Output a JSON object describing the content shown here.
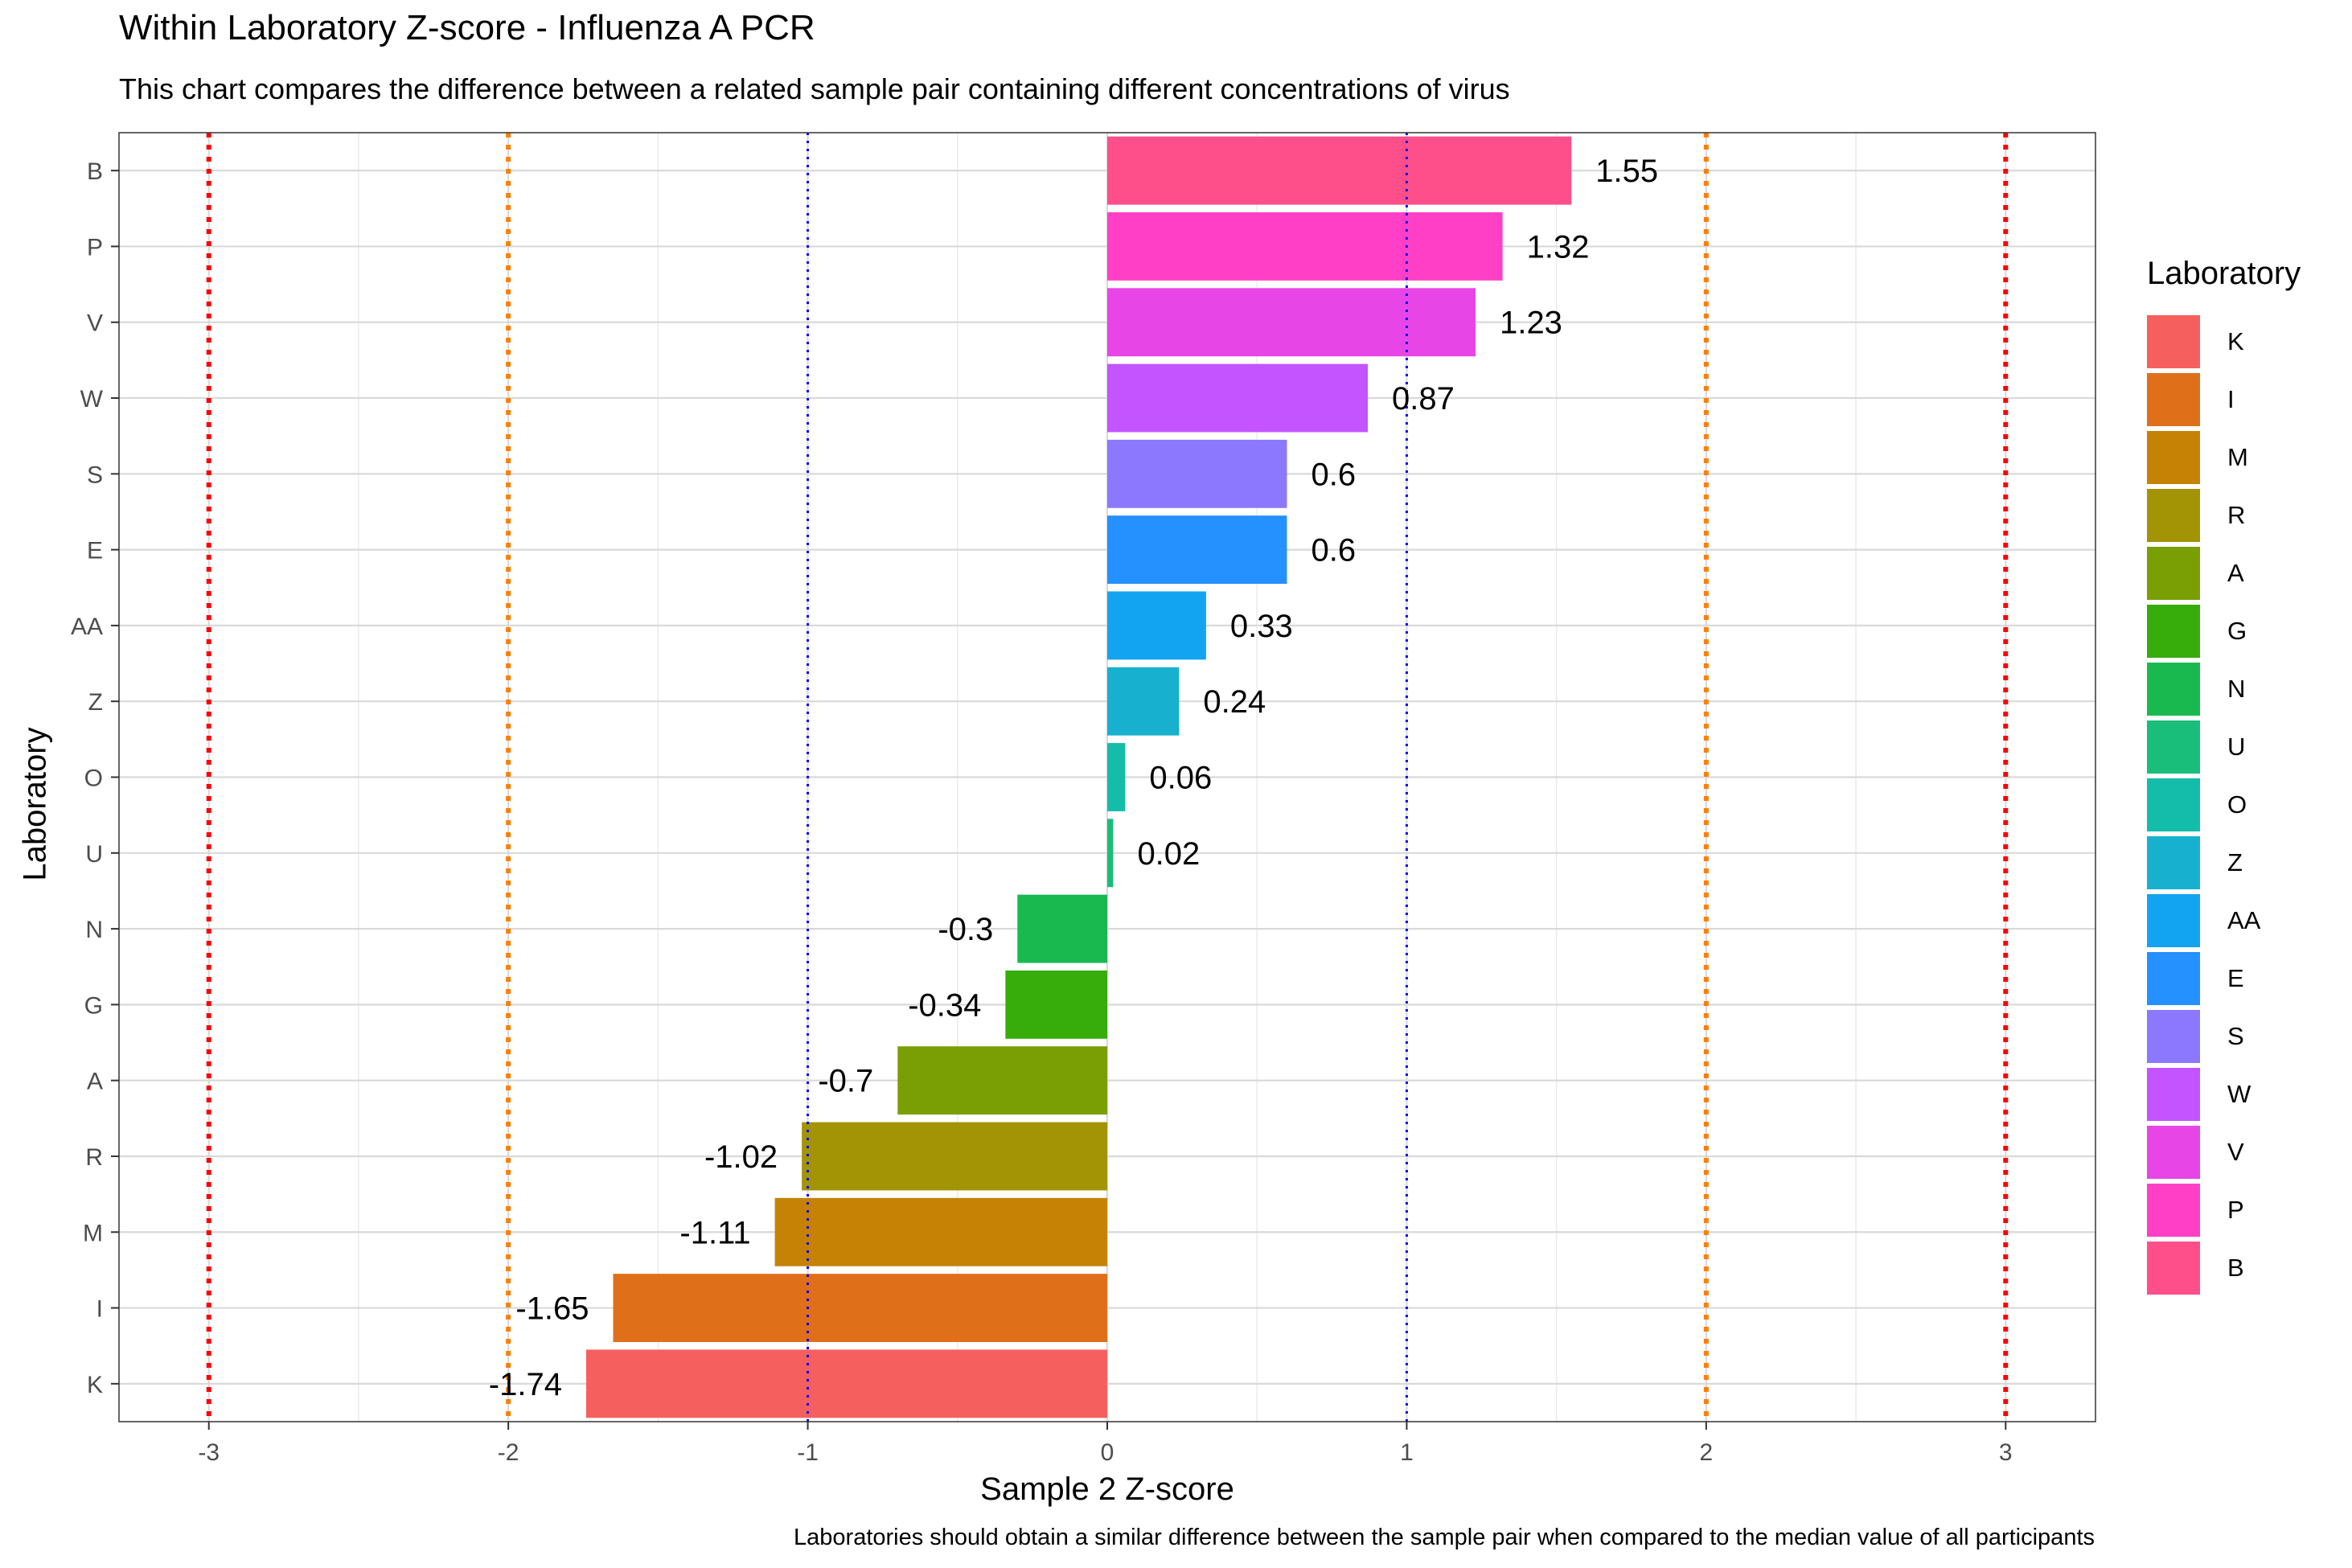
{
  "chart_data": {
    "type": "bar",
    "orientation": "horizontal",
    "title": "Within Laboratory Z-score - Influenza A PCR",
    "subtitle": "This chart compares the difference between a related sample pair containing different concentrations of virus",
    "caption": "Laboratories should obtain a similar difference between the sample pair when compared to the median value of all participants",
    "xlabel": "Sample 2 Z-score",
    "ylabel": "Laboratory",
    "xlim": [
      -3.3,
      3.3
    ],
    "xticks": [
      "-3",
      "-2",
      "-1",
      "0",
      "1",
      "2",
      "3"
    ],
    "grid": true,
    "categories": [
      "B",
      "P",
      "V",
      "W",
      "S",
      "E",
      "AA",
      "Z",
      "O",
      "U",
      "N",
      "G",
      "A",
      "R",
      "M",
      "I",
      "K"
    ],
    "values": [
      1.55,
      1.32,
      1.23,
      0.87,
      0.6,
      0.6,
      0.33,
      0.24,
      0.06,
      0.02,
      -0.3,
      -0.34,
      -0.7,
      -1.02,
      -1.11,
      -1.65,
      -1.74
    ],
    "value_labels": [
      "1.55",
      "1.32",
      "1.23",
      "0.87",
      "0.6",
      "0.6",
      "0.33",
      "0.24",
      "0.06",
      "0.02",
      "-0.3",
      "-0.34",
      "-0.7",
      "-1.02",
      "-1.11",
      "-1.65",
      "-1.74"
    ],
    "colors": [
      "#FF4F8B",
      "#FF40C7",
      "#E845E6",
      "#C354FF",
      "#8B78FF",
      "#2590FF",
      "#12A4F0",
      "#17B1CF",
      "#14BCAA",
      "#19BE7A",
      "#19B950",
      "#36AD0A",
      "#7A9F04",
      "#A39405",
      "#C58205",
      "#E06F1A",
      "#F5605E"
    ],
    "reference_lines": [
      {
        "x": -3,
        "color": "#FF0000"
      },
      {
        "x": -2,
        "color": "#FF7F00"
      },
      {
        "x": -1,
        "color": "#0000FF"
      },
      {
        "x": 1,
        "color": "#0000FF"
      },
      {
        "x": 2,
        "color": "#FF7F00"
      },
      {
        "x": 3,
        "color": "#FF0000"
      }
    ],
    "legend": {
      "title": "Laboratory",
      "position": "right",
      "entries": [
        "K",
        "I",
        "M",
        "R",
        "A",
        "G",
        "N",
        "U",
        "O",
        "Z",
        "AA",
        "E",
        "S",
        "W",
        "V",
        "P",
        "B"
      ]
    }
  }
}
